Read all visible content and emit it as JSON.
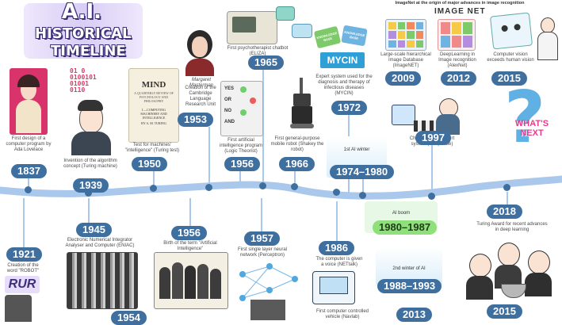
{
  "title": {
    "line1": "A.I.",
    "line2": "HISTORICAL",
    "line3": "TIMELINE"
  },
  "imagenet": {
    "caption": "ImageNet at the origin of major advances in image recognition",
    "logo": "IMAGE NET"
  },
  "events": [
    {
      "id": "e1837",
      "year": "1837",
      "label": "First design of a computer program by Ada Lovelace"
    },
    {
      "id": "e1939",
      "year": "1939",
      "label": "Invention of the algorithm concept (Turing machine)"
    },
    {
      "id": "e1950",
      "year": "1950",
      "label": "Test for machines' \"intelligence\" (Turing test)"
    },
    {
      "id": "e1953",
      "year": "1953",
      "label": "Creation of the Cambridge Language Research Unit",
      "person": "Margaret Masterman"
    },
    {
      "id": "e1965",
      "year": "1965",
      "label": "First psychotherapist chatbot (ELIZA)"
    },
    {
      "id": "e1956a",
      "year": "1956",
      "label": "First artificial intelligence program (Logic Theorist)"
    },
    {
      "id": "e1966",
      "year": "1966",
      "label": "First general-purpose mobile robot (Shakey the robot)"
    },
    {
      "id": "e1972",
      "year": "1972",
      "label": "Expert system used for the diagnosis and therapy of infectious diseases (MYCIN)",
      "logo": "MYCIN"
    },
    {
      "id": "e2009",
      "year": "2009",
      "label": "Large-scale hierarchical Image Database (ImageNET)"
    },
    {
      "id": "e2012",
      "year": "2012",
      "label": "DeepLearning in Image recognition (AlexNet)"
    },
    {
      "id": "e2015a",
      "year": "2015",
      "label": "Computer vision exceeds human vision"
    },
    {
      "id": "e1997",
      "year": "1997",
      "label": "Chess-playing expert system (Deep Blue)"
    },
    {
      "id": "e1921",
      "year": "1921",
      "label": "Creation of the word \"ROBOT\"",
      "logo": "RUR"
    },
    {
      "id": "e1945",
      "year": "1945",
      "label": "Electronic Numerical Integrator Analyser and Computer (ENIAC)"
    },
    {
      "id": "e1956b",
      "year": "1956",
      "label": "Birth of the term \"Artificial Intelligence\""
    },
    {
      "id": "e1957",
      "year": "1957",
      "label": "First single layer neural network (Perceptron)"
    },
    {
      "id": "e1986",
      "year": "1986",
      "label": "The computer is given a voice (NETtalk)"
    },
    {
      "id": "e1954",
      "year": "1954",
      "label": ""
    },
    {
      "id": "e2013",
      "year": "2013",
      "label": ""
    },
    {
      "id": "e2018",
      "year": "2018",
      "label": "Turing Award for recent advances in deep learning"
    },
    {
      "id": "e2015b",
      "year": "2015",
      "label": ""
    }
  ],
  "eras": {
    "winter1": {
      "label": "1st AI winter",
      "years": "1974–1980"
    },
    "boom": {
      "label": "AI boom",
      "years": "1980–1987"
    },
    "winter2": {
      "label": "2nd winter of AI",
      "years": "1988–1993"
    }
  },
  "navlab": "First computer controlled vehicle (Navlab)",
  "eniac_small": "",
  "binary": {
    "l1": "01 0",
    "l2": "0100101",
    "l3": "01001",
    "l4": "0110"
  },
  "mind": {
    "title": "MIND",
    "sub": "A QUARTERLY REVIEW OF PSYCHOLOGY AND PHILOSOPHY",
    "art": "I.—COMPUTING MACHINERY AND INTELLIGENCE",
    "by": "BY A. M. TURING"
  },
  "logic": {
    "r1": "YES",
    "r2": "OR",
    "r3": "NO",
    "r4": "AND"
  },
  "knowledge": {
    "a": "KNOWLEDGE BASE",
    "b": "KNOWLEDGE BASE"
  },
  "whatsnext": "WHAT'S NEXT",
  "colors": {
    "year_pill": "#3f6f9f",
    "timeline": "#a9c8ec",
    "title_bg": "#c9b8f0"
  }
}
